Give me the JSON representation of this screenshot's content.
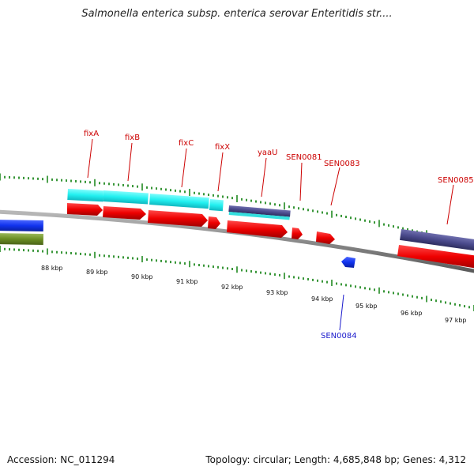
{
  "title": "Salmonella enterica subsp. enterica serovar Enteritidis str....",
  "footer": {
    "accession": "Accession: NC_011294",
    "stats": "Topology: circular; Length: 4,685,848 bp; Genes: 4,312"
  },
  "scale_labels": [
    "88 kbp",
    "89 kbp",
    "90 kbp",
    "91 kbp",
    "92 kbp",
    "93 kbp",
    "94 kbp",
    "95 kbp",
    "96 kbp",
    "97 kbp"
  ],
  "gene_labels": [
    {
      "text": "fixA",
      "color": "#cc0000"
    },
    {
      "text": "fixB",
      "color": "#cc0000"
    },
    {
      "text": "fixC",
      "color": "#cc0000"
    },
    {
      "text": "fixX",
      "color": "#cc0000"
    },
    {
      "text": "yaaU",
      "color": "#cc0000"
    },
    {
      "text": "SEN0081",
      "color": "#cc0000"
    },
    {
      "text": "SEN0083",
      "color": "#cc0000"
    },
    {
      "text": "SEN0085",
      "color": "#cc0000"
    },
    {
      "text": "SEN0084",
      "color": "#1a1acc"
    }
  ],
  "colors": {
    "cds_forward": "#ee0000",
    "cds_reverse": "#1133ee",
    "cog_cyan": "#33ffff",
    "cog_purple": "#4a4a8c",
    "cog_green": "#6b8e23",
    "tick": "#228b22",
    "backbone": "#8a8a8a"
  }
}
